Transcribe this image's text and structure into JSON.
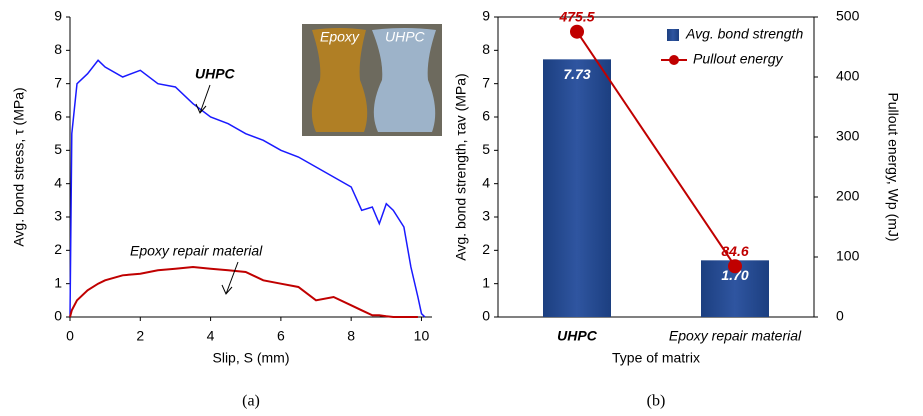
{
  "chart_data": [
    {
      "type": "line",
      "x_label": "Slip, S (mm)",
      "y_label": "Avg. bond stress, τ (MPa)",
      "caption": "(a)",
      "x": [
        0,
        0.05,
        0.2,
        0.5,
        0.8,
        1,
        1.5,
        2,
        2.5,
        3,
        3.5,
        4,
        4.5,
        5,
        5.5,
        6,
        6.5,
        7,
        7.5,
        8,
        8.3,
        8.6,
        8.8,
        9,
        9.2,
        9.5,
        9.7,
        9.9,
        10,
        10.1
      ],
      "series": [
        {
          "name": "UHPC",
          "color": "#1a1aff",
          "values": [
            0,
            5.5,
            7.0,
            7.3,
            7.7,
            7.5,
            7.2,
            7.4,
            7.0,
            6.9,
            6.4,
            6.0,
            5.8,
            5.5,
            5.3,
            5.0,
            4.8,
            4.5,
            4.2,
            3.9,
            3.2,
            3.3,
            2.8,
            3.4,
            3.2,
            2.7,
            1.5,
            0.6,
            0.1,
            0
          ]
        },
        {
          "name": "Epoxy repair material",
          "color": "#c00000",
          "values": [
            0,
            0.2,
            0.5,
            0.8,
            1.0,
            1.1,
            1.25,
            1.3,
            1.4,
            1.45,
            1.5,
            1.45,
            1.4,
            1.35,
            1.1,
            1.0,
            0.9,
            0.5,
            0.6,
            0.35,
            0.2,
            0.05,
            0.05,
            0.02,
            0,
            0,
            0,
            0,
            null,
            null
          ]
        }
      ],
      "inset_labels": [
        "Epoxy",
        "UHPC"
      ],
      "xlim": [
        0,
        10.3
      ],
      "xticks": [
        0,
        2,
        4,
        6,
        8,
        10
      ],
      "ylim": [
        0,
        9
      ],
      "yticks": [
        0,
        1,
        2,
        3,
        4,
        5,
        6,
        7,
        8,
        9
      ]
    },
    {
      "type": "bar",
      "x_label": "Type of matrix",
      "y_label": "Avg. bond strength, τav (MPa)",
      "y2_label": "Pullout energy, Wp (mJ)",
      "caption": "(b)",
      "categories": [
        "UHPC",
        "Epoxy repair material"
      ],
      "series": [
        {
          "name": "Avg. bond strength",
          "color": "#2f55a0",
          "values": [
            7.73,
            1.7
          ],
          "value_labels": [
            "7.73",
            "1.70"
          ]
        },
        {
          "name": "Pullout energy",
          "color": "#c00000",
          "axis": "y2",
          "values": [
            475.5,
            84.6
          ]
        }
      ],
      "ylim": [
        0,
        9
      ],
      "yticks": [
        0,
        1,
        2,
        3,
        4,
        5,
        6,
        7,
        8,
        9
      ],
      "y2lim": [
        0,
        500
      ],
      "y2ticks": [
        0,
        100,
        200,
        300,
        400,
        500
      ]
    }
  ]
}
